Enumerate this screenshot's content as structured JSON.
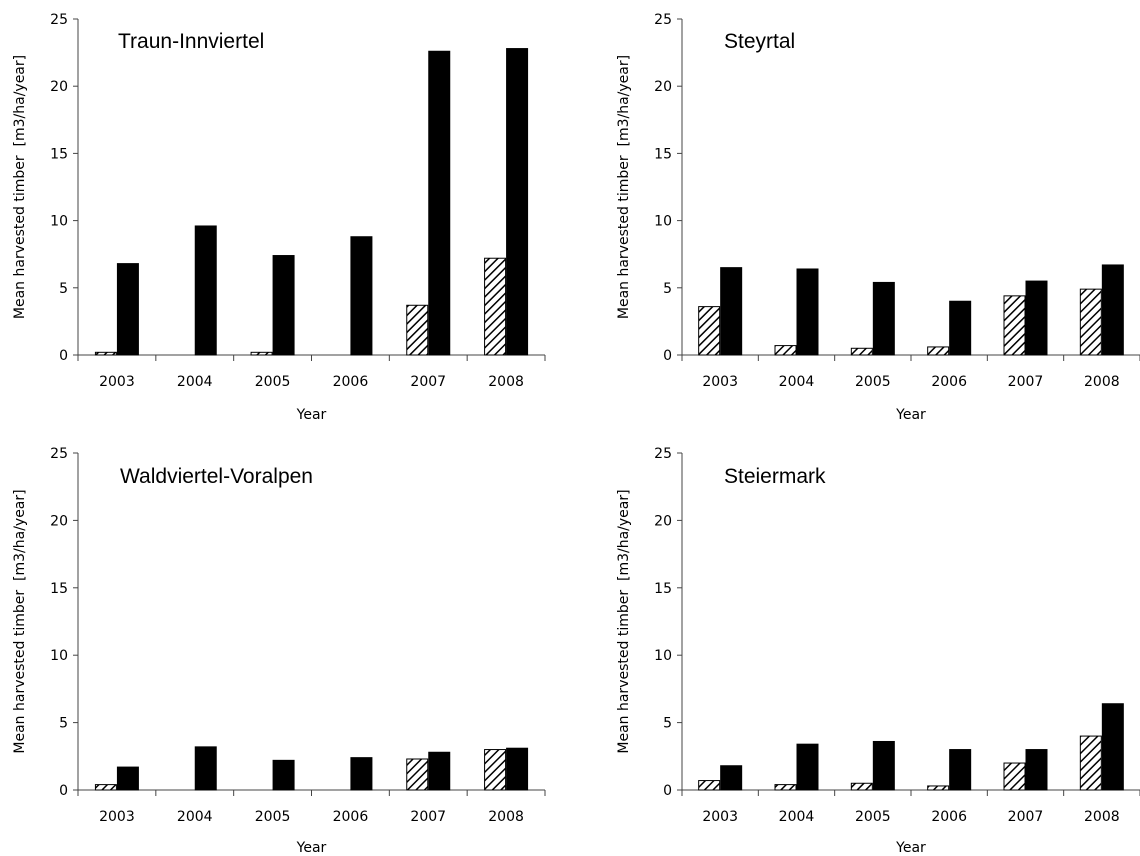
{
  "chart_data": [
    {
      "type": "bar",
      "title": "Traun-Innviertel",
      "xlabel": "Year",
      "ylabel": "Mean harvested timber  [m3/ha/year]",
      "categories": [
        "2003",
        "2004",
        "2005",
        "2006",
        "2007",
        "2008"
      ],
      "ylim": [
        0,
        25
      ],
      "yticks": [
        0,
        5,
        10,
        15,
        20,
        25
      ],
      "series": [
        {
          "pattern": "hatched",
          "values": [
            0.2,
            0,
            0.2,
            0,
            3.7,
            7.2
          ]
        },
        {
          "pattern": "solid",
          "values": [
            6.8,
            9.6,
            7.4,
            8.8,
            22.6,
            22.8
          ]
        }
      ]
    },
    {
      "type": "bar",
      "title": "Steyrtal",
      "xlabel": "Year",
      "ylabel": "Mean harvested timber  [m3/ha/year]",
      "categories": [
        "2003",
        "2004",
        "2005",
        "2006",
        "2007",
        "2008"
      ],
      "ylim": [
        0,
        25
      ],
      "yticks": [
        0,
        5,
        10,
        15,
        20,
        25
      ],
      "series": [
        {
          "pattern": "hatched",
          "values": [
            3.6,
            0.7,
            0.5,
            0.6,
            4.4,
            4.9
          ]
        },
        {
          "pattern": "solid",
          "values": [
            6.5,
            6.4,
            5.4,
            4.0,
            5.5,
            6.7
          ]
        }
      ]
    },
    {
      "type": "bar",
      "title": "Waldviertel-Voralpen",
      "xlabel": "Year",
      "ylabel": "Mean harvested timber  [m3/ha/year]",
      "categories": [
        "2003",
        "2004",
        "2005",
        "2006",
        "2007",
        "2008"
      ],
      "ylim": [
        0,
        25
      ],
      "yticks": [
        0,
        5,
        10,
        15,
        20,
        25
      ],
      "series": [
        {
          "pattern": "hatched",
          "values": [
            0.4,
            0,
            0,
            0,
            2.3,
            3.0
          ]
        },
        {
          "pattern": "solid",
          "values": [
            1.7,
            3.2,
            2.2,
            2.4,
            2.8,
            3.1
          ]
        }
      ]
    },
    {
      "type": "bar",
      "title": "Steiermark",
      "xlabel": "Year",
      "ylabel": "Mean harvested timber  [m3/ha/year]",
      "categories": [
        "2003",
        "2004",
        "2005",
        "2006",
        "2007",
        "2008"
      ],
      "ylim": [
        0,
        25
      ],
      "yticks": [
        0,
        5,
        10,
        15,
        20,
        25
      ],
      "series": [
        {
          "pattern": "hatched",
          "values": [
            0.7,
            0.4,
            0.5,
            0.3,
            2.0,
            4.0
          ]
        },
        {
          "pattern": "solid",
          "values": [
            1.8,
            3.4,
            3.6,
            3.0,
            3.0,
            6.4
          ]
        }
      ]
    }
  ]
}
